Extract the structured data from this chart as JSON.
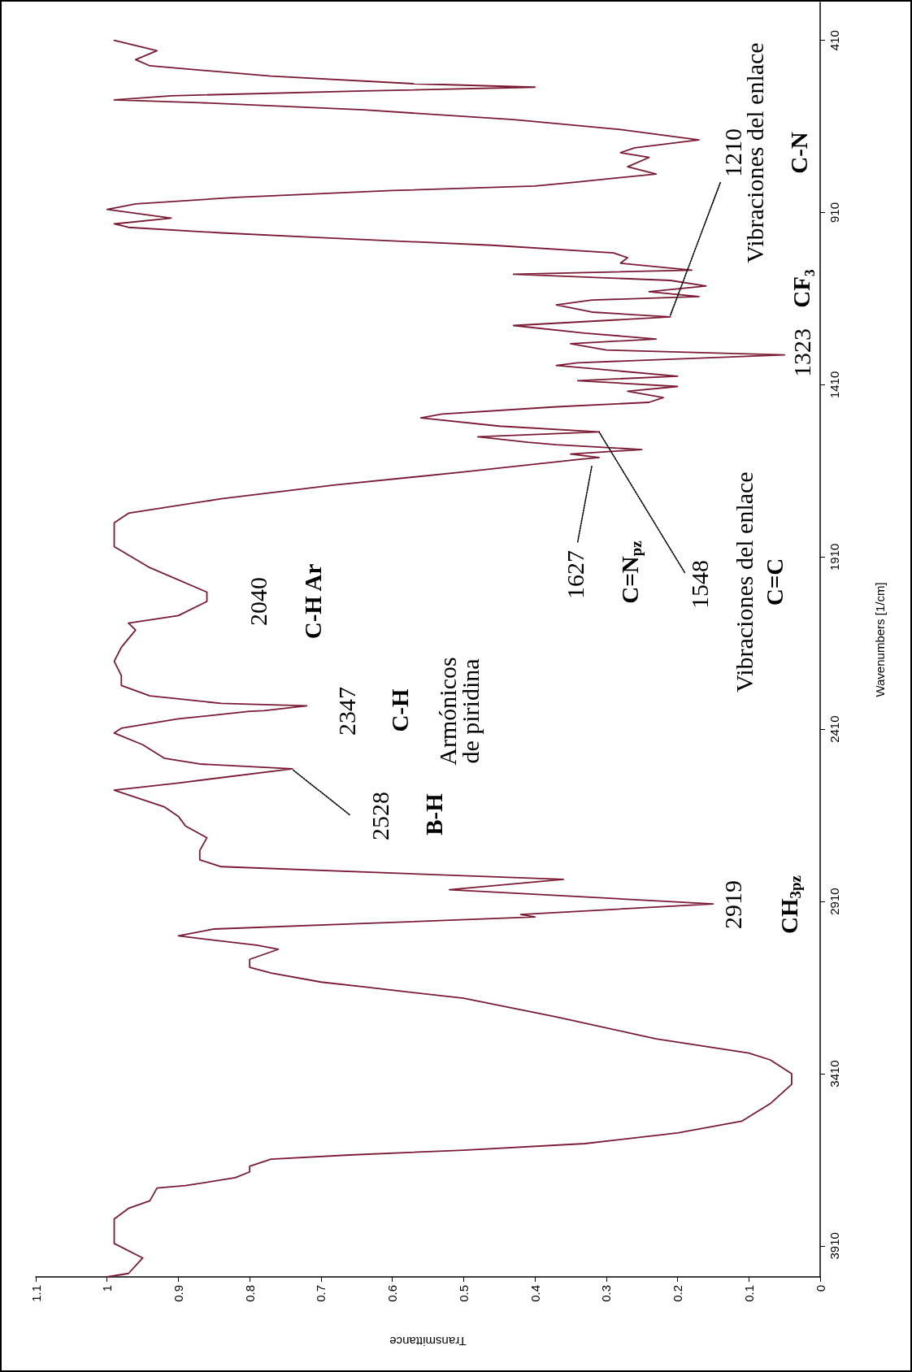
{
  "chart_data": {
    "type": "line",
    "xlabel": "Transmittance",
    "ylabel": "Wavenumbers [1/cm]",
    "xlim": [
      1.1,
      0
    ],
    "xticks": [
      0,
      0.1,
      0.2,
      0.3,
      0.4,
      0.5,
      0.6,
      0.7,
      0.8,
      0.9,
      1,
      1.1
    ],
    "ylim": [
      4000,
      300
    ],
    "yticks": [
      3910,
      3410,
      2910,
      2410,
      1910,
      1410,
      910,
      410
    ],
    "marker": "none",
    "line_style": "solid",
    "grid": false,
    "series": [
      {
        "color": "#7a1a35",
        "values": [
          4000,
          3990,
          3945,
          3903,
          3869,
          3832,
          3801,
          3779,
          3742,
          3735,
          3712,
          3695,
          3679,
          3658,
          3646,
          3632,
          3613,
          3582,
          3548,
          3497,
          3441,
          3410,
          3370,
          3350,
          3309,
          3245,
          3191,
          3158,
          3144,
          3118,
          3101,
          3078,
          3049,
          3037,
          3010,
          2990,
          2974,
          2955,
          2948,
          2917,
          2876,
          2846,
          2809,
          2789,
          2762,
          2725,
          2691,
          2663,
          2635,
          2594,
          2587,
          2566,
          2525,
          2511,
          2494,
          2455,
          2421,
          2407,
          2380,
          2358,
          2356,
          2342,
          2335,
          2313,
          2283,
          2254,
          2213,
          2172,
          2122,
          2102,
          2080,
          2039,
          2012,
          1941,
          1880,
          1811,
          1783,
          1741,
          1701,
          1663,
          1627,
          1621,
          1611,
          1598,
          1584,
          1577,
          1561,
          1547,
          1530,
          1506,
          1495,
          1474,
          1461,
          1447,
          1429,
          1415,
          1398,
          1385,
          1354,
          1346,
          1323,
          1309,
          1291,
          1277,
          1260,
          1238,
          1213,
          1199,
          1178,
          1164,
          1154,
          1140,
          1123,
          1107,
          1089,
          1077,
          1057,
          1041,
          1027,
          1005,
          983,
          969,
          953,
          943,
          926,
          901,
          885,
          866,
          846,
          833,
          821,
          798,
          777,
          750,
          736,
          722,
          699,
          669,
          640,
          612,
          591,
          583,
          571,
          557,
          546,
          536,
          514,
          484,
          466,
          440,
          410
        ],
        "x": [
          1.0,
          0.97,
          0.95,
          0.99,
          0.99,
          0.99,
          0.97,
          0.94,
          0.93,
          0.89,
          0.82,
          0.8,
          0.8,
          0.77,
          0.66,
          0.5,
          0.33,
          0.2,
          0.11,
          0.07,
          0.04,
          0.04,
          0.07,
          0.1,
          0.23,
          0.37,
          0.5,
          0.64,
          0.7,
          0.77,
          0.8,
          0.8,
          0.76,
          0.79,
          0.9,
          0.85,
          0.64,
          0.4,
          0.42,
          0.15,
          0.52,
          0.36,
          0.84,
          0.87,
          0.87,
          0.86,
          0.89,
          0.9,
          0.92,
          0.98,
          0.99,
          0.9,
          0.74,
          0.87,
          0.92,
          0.95,
          0.99,
          0.98,
          0.9,
          0.8,
          0.78,
          0.72,
          0.84,
          0.94,
          0.98,
          0.98,
          0.99,
          0.98,
          0.96,
          0.97,
          0.9,
          0.86,
          0.86,
          0.94,
          0.99,
          0.99,
          0.97,
          0.84,
          0.68,
          0.5,
          0.34,
          0.31,
          0.35,
          0.25,
          0.37,
          0.41,
          0.48,
          0.31,
          0.45,
          0.56,
          0.53,
          0.37,
          0.24,
          0.22,
          0.27,
          0.2,
          0.34,
          0.2,
          0.37,
          0.34,
          0.05,
          0.3,
          0.35,
          0.23,
          0.33,
          0.43,
          0.21,
          0.32,
          0.37,
          0.32,
          0.17,
          0.24,
          0.16,
          0.21,
          0.43,
          0.18,
          0.28,
          0.27,
          0.29,
          0.46,
          0.7,
          0.84,
          0.97,
          0.99,
          0.91,
          1.0,
          0.96,
          0.82,
          0.6,
          0.4,
          0.34,
          0.23,
          0.27,
          0.24,
          0.28,
          0.26,
          0.17,
          0.28,
          0.43,
          0.64,
          0.87,
          0.99,
          0.91,
          0.64,
          0.4,
          0.57,
          0.77,
          0.94,
          0.96,
          0.93,
          0.99
        ]
      },
      {
        "color": "#000000",
        "line_style": "dotted",
        "x": [
          0.66,
          0.74
        ],
        "values": [
          2658,
          2527
        ]
      },
      {
        "color": "#000000",
        "line_style": "dotted",
        "x": [
          0.34,
          0.32
        ],
        "values": [
          1866,
          1644
        ]
      },
      {
        "color": "#000000",
        "line_style": "dotted",
        "x": [
          0.19,
          0.31
        ],
        "values": [
          1955,
          1547
        ]
      },
      {
        "color": "#000000",
        "line_style": "dotted",
        "x": [
          0.14,
          0.21
        ],
        "values": [
          823,
          1208
        ]
      }
    ],
    "annotations": [
      "2919",
      "CH$_{3pz}$",
      "2528",
      "B-H",
      "2347",
      "C-H",
      "Armónicos\nde piridina",
      "2040",
      "C-H Ar",
      "1627",
      "C=N$_{pz}$",
      "1548",
      "Vibraciones del enlace",
      "C=C",
      "1323",
      "CF₃",
      "1210",
      "Vibraciones del enlace",
      "C-N"
    ]
  }
}
